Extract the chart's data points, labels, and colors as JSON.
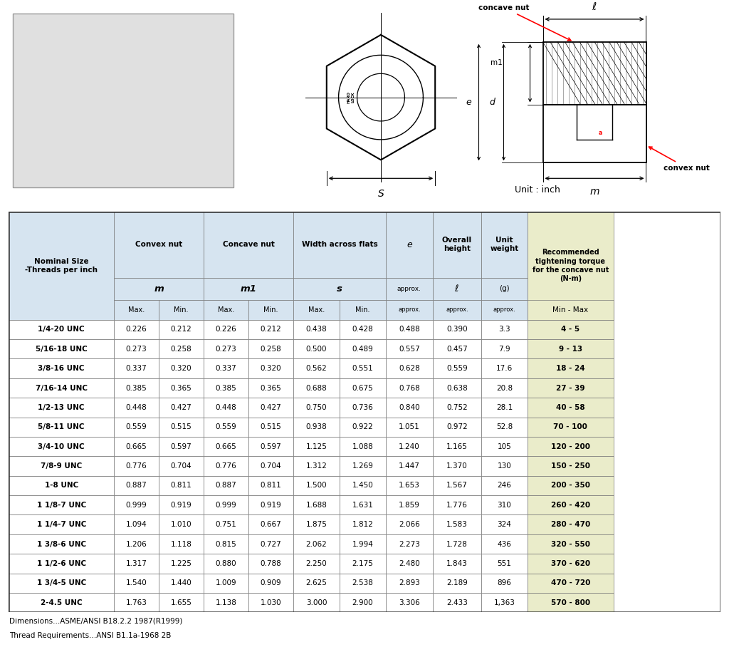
{
  "footnote1": "Dimensions...ASME/ANSI B18.2.2 1987(R1999)",
  "footnote2": "Thread Requirements...ANSI B1.1a-1968 2B",
  "header_bg": "#d6e4f0",
  "header_bg2": "#eaecca",
  "row_bg_white": "#ffffff",
  "rows": [
    [
      "1/4-20 UNC",
      "0.226",
      "0.212",
      "0.226",
      "0.212",
      "0.438",
      "0.428",
      "0.488",
      "0.390",
      "3.3",
      "4 - 5"
    ],
    [
      "5/16-18 UNC",
      "0.273",
      "0.258",
      "0.273",
      "0.258",
      "0.500",
      "0.489",
      "0.557",
      "0.457",
      "7.9",
      "9 - 13"
    ],
    [
      "3/8-16 UNC",
      "0.337",
      "0.320",
      "0.337",
      "0.320",
      "0.562",
      "0.551",
      "0.628",
      "0.559",
      "17.6",
      "18 - 24"
    ],
    [
      "7/16-14 UNC",
      "0.385",
      "0.365",
      "0.385",
      "0.365",
      "0.688",
      "0.675",
      "0.768",
      "0.638",
      "20.8",
      "27 - 39"
    ],
    [
      "1/2-13 UNC",
      "0.448",
      "0.427",
      "0.448",
      "0.427",
      "0.750",
      "0.736",
      "0.840",
      "0.752",
      "28.1",
      "40 - 58"
    ],
    [
      "5/8-11 UNC",
      "0.559",
      "0.515",
      "0.559",
      "0.515",
      "0.938",
      "0.922",
      "1.051",
      "0.972",
      "52.8",
      "70 - 100"
    ],
    [
      "3/4-10 UNC",
      "0.665",
      "0.597",
      "0.665",
      "0.597",
      "1.125",
      "1.088",
      "1.240",
      "1.165",
      "105",
      "120 - 200"
    ],
    [
      "7/8-9 UNC",
      "0.776",
      "0.704",
      "0.776",
      "0.704",
      "1.312",
      "1.269",
      "1.447",
      "1.370",
      "130",
      "150 - 250"
    ],
    [
      "1-8 UNC",
      "0.887",
      "0.811",
      "0.887",
      "0.811",
      "1.500",
      "1.450",
      "1.653",
      "1.567",
      "246",
      "200 - 350"
    ],
    [
      "1 1/8-7 UNC",
      "0.999",
      "0.919",
      "0.999",
      "0.919",
      "1.688",
      "1.631",
      "1.859",
      "1.776",
      "310",
      "260 - 420"
    ],
    [
      "1 1/4-7 UNC",
      "1.094",
      "1.010",
      "0.751",
      "0.667",
      "1.875",
      "1.812",
      "2.066",
      "1.583",
      "324",
      "280 - 470"
    ],
    [
      "1 3/8-6 UNC",
      "1.206",
      "1.118",
      "0.815",
      "0.727",
      "2.062",
      "1.994",
      "2.273",
      "1.728",
      "436",
      "320 - 550"
    ],
    [
      "1 1/2-6 UNC",
      "1.317",
      "1.225",
      "0.880",
      "0.788",
      "2.250",
      "2.175",
      "2.480",
      "1.843",
      "551",
      "370 - 620"
    ],
    [
      "1 3/4-5 UNC",
      "1.540",
      "1.440",
      "1.009",
      "0.909",
      "2.625",
      "2.538",
      "2.893",
      "2.189",
      "896",
      "470 - 720"
    ],
    [
      "2-4.5 UNC",
      "1.763",
      "1.655",
      "1.138",
      "1.030",
      "3.000",
      "2.900",
      "3.306",
      "2.433",
      "1,363",
      "570 - 800"
    ]
  ]
}
